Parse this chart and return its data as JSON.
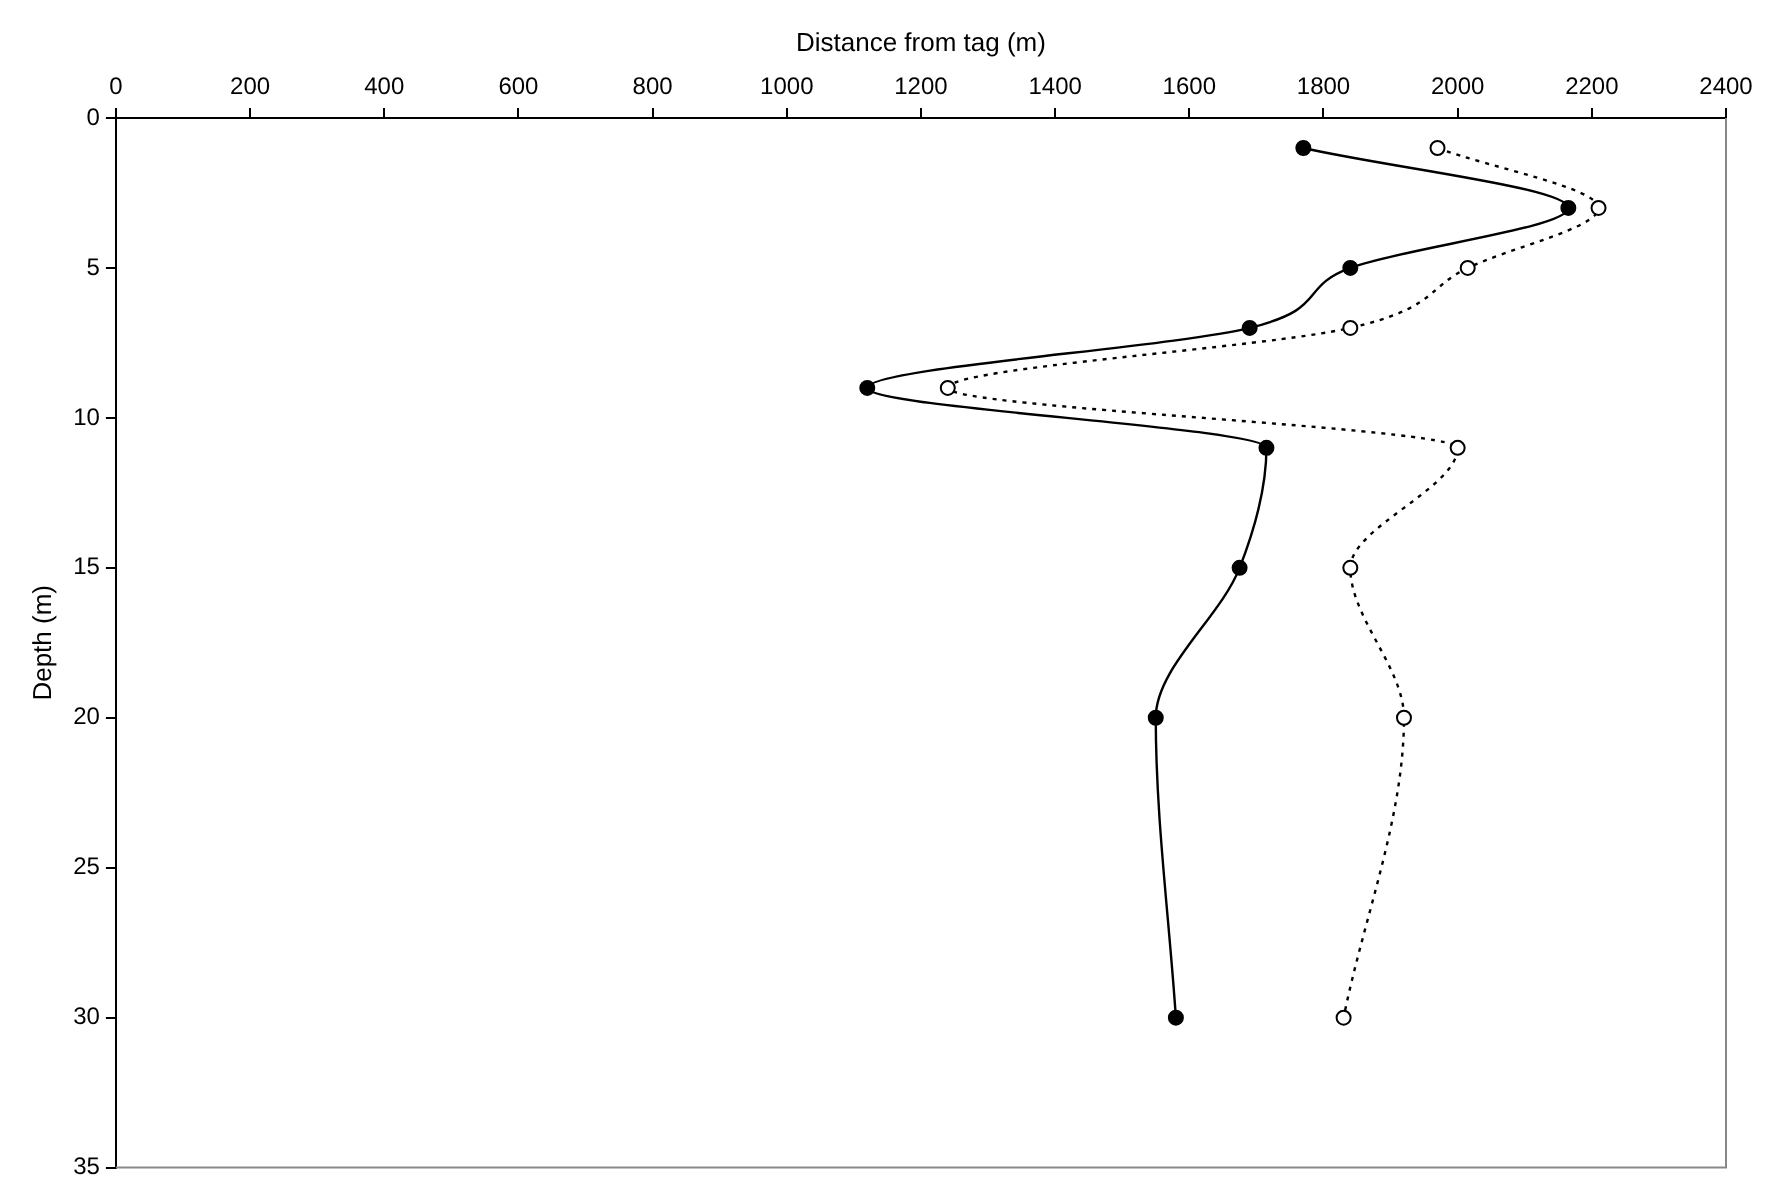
{
  "chart_data": {
    "type": "line",
    "xlabel": "Distance from tag (m)",
    "ylabel": "Depth (m)",
    "xlim": [
      0,
      2400
    ],
    "xticks": [
      0,
      200,
      400,
      600,
      800,
      1000,
      1200,
      1400,
      1600,
      1800,
      2000,
      2200,
      2400
    ],
    "ylim": [
      35,
      0
    ],
    "yticks": [
      0,
      5,
      10,
      15,
      20,
      25,
      30,
      35
    ],
    "grid": false,
    "legend": false,
    "series": [
      {
        "color": "#000000",
        "marker": "circle",
        "line_style": "solid",
        "x": [
          1770,
          2165,
          1840,
          1690,
          1120,
          1715,
          1675,
          1550,
          1580
        ],
        "values": [
          1,
          3,
          5,
          7,
          9,
          11,
          15,
          20,
          30
        ]
      },
      {
        "color": "#000000",
        "marker": "circle",
        "line_style": "dotted",
        "x": [
          1970,
          2210,
          2015,
          1840,
          1240,
          2000,
          1840,
          1920,
          1830
        ],
        "values": [
          1,
          3,
          5,
          7,
          9,
          11,
          15,
          20,
          30
        ]
      }
    ]
  }
}
